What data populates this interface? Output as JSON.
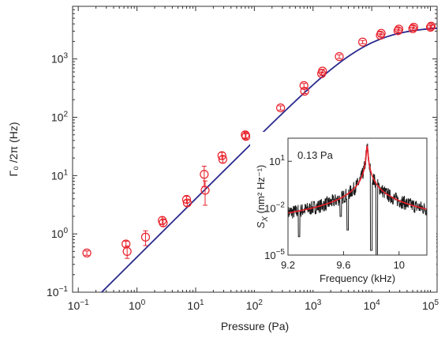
{
  "chart_data": [
    {
      "type": "scatter",
      "title": "",
      "xlabel": "Pressure (Pa)",
      "ylabel": "Γ₀ /2π (Hz)",
      "xscale": "log",
      "yscale": "log",
      "xlim": [
        0.08,
        130000
      ],
      "ylim": [
        0.1,
        8000
      ],
      "grid": false,
      "x_ticks": [
        {
          "value": 0.1,
          "base": "10",
          "exp": "−1"
        },
        {
          "value": 1,
          "base": "10",
          "exp": "0"
        },
        {
          "value": 10,
          "base": "10",
          "exp": "1"
        },
        {
          "value": 100,
          "base": "10",
          "exp": "2"
        },
        {
          "value": 1000,
          "base": "10",
          "exp": "3"
        },
        {
          "value": 10000,
          "base": "10",
          "exp": "4"
        },
        {
          "value": 100000,
          "base": "10",
          "exp": "5"
        }
      ],
      "y_ticks": [
        {
          "value": 0.1,
          "base": "10",
          "exp": "−1"
        },
        {
          "value": 1,
          "base": "10",
          "exp": "0"
        },
        {
          "value": 10,
          "base": "10",
          "exp": "1"
        },
        {
          "value": 100,
          "base": "10",
          "exp": "2"
        },
        {
          "value": 1000,
          "base": "10",
          "exp": "3"
        }
      ],
      "series": [
        {
          "kind": "points",
          "color": "#e8202a",
          "marker": "open-circle",
          "points": [
            {
              "x": 0.14,
              "y": 0.47,
              "err": 0.04
            },
            {
              "x": 0.65,
              "y": 0.67,
              "err": 0.08
            },
            {
              "x": 0.68,
              "y": 0.5,
              "err": 0.12
            },
            {
              "x": 1.4,
              "y": 0.88,
              "err": 0.25
            },
            {
              "x": 2.7,
              "y": 1.7,
              "err": 0.25
            },
            {
              "x": 2.8,
              "y": 1.55,
              "err": 0.2
            },
            {
              "x": 7.0,
              "y": 3.9,
              "err": 0.5
            },
            {
              "x": 7.2,
              "y": 3.4,
              "err": 0.4
            },
            {
              "x": 14,
              "y": 10.5,
              "err": 4.0
            },
            {
              "x": 14.5,
              "y": 5.6,
              "err": 2.5
            },
            {
              "x": 28,
              "y": 22,
              "err": 3.0
            },
            {
              "x": 29,
              "y": 19,
              "err": 2.5
            },
            {
              "x": 70,
              "y": 50,
              "err": 6.0
            },
            {
              "x": 72,
              "y": 47,
              "err": 5.0
            },
            {
              "x": 280,
              "y": 145,
              "err": 12
            },
            {
              "x": 700,
              "y": 350,
              "err": 30
            },
            {
              "x": 720,
              "y": 280,
              "err": 25
            },
            {
              "x": 1400,
              "y": 560,
              "err": 40
            },
            {
              "x": 1450,
              "y": 620,
              "err": 45
            },
            {
              "x": 2800,
              "y": 1100,
              "err": 80
            },
            {
              "x": 7000,
              "y": 1950,
              "err": 120
            },
            {
              "x": 14000,
              "y": 2550,
              "err": 150
            },
            {
              "x": 14500,
              "y": 2750,
              "err": 160
            },
            {
              "x": 28000,
              "y": 3050,
              "err": 180
            },
            {
              "x": 29000,
              "y": 3250,
              "err": 190
            },
            {
              "x": 50000,
              "y": 3300,
              "err": 200
            },
            {
              "x": 52000,
              "y": 3500,
              "err": 200
            },
            {
              "x": 100000,
              "y": 3500,
              "err": 200
            },
            {
              "x": 103000,
              "y": 3650,
              "err": 200
            }
          ]
        },
        {
          "kind": "line",
          "color": "#2a2a8f",
          "model": "y = a·x / (1 + x/x0)",
          "a": 0.4,
          "x0": 9000,
          "x_from": 0.2,
          "x_to": 130000
        }
      ]
    },
    {
      "type": "line",
      "inset": true,
      "title": "",
      "annotation": "0.13 Pa",
      "xlabel": "Frequency (kHz)",
      "ylabel_main": "S",
      "ylabel_sub": "X",
      "ylabel_units": " (nm² Hz⁻¹)",
      "xlim": [
        9.2,
        10.2
      ],
      "ylim": [
        1e-05,
        300
      ],
      "xscale": "linear",
      "yscale": "log",
      "x_ticks": [
        "9.2",
        "9.6",
        "10"
      ],
      "x_tick_values": [
        9.2,
        9.6,
        10.0
      ],
      "y_ticks": [
        {
          "value": 1e-05,
          "base": "10",
          "exp": "−5"
        },
        {
          "value": 0.01,
          "base": "10",
          "exp": "−2"
        },
        {
          "value": 10,
          "base": "10",
          "exp": "1"
        }
      ],
      "series": [
        {
          "name": "",
          "kind": "data",
          "color": "#1a1a1a",
          "peak_freq": 9.77,
          "peak_value": 100,
          "baseline": 3e-05,
          "features": [
            {
              "freq": 9.28,
              "value": 0.00015
            },
            {
              "freq": 9.58,
              "value": 0.003
            },
            {
              "freq": 9.63,
              "value": 0.0004
            },
            {
              "freq": 9.8,
              "value": 2e-05
            },
            {
              "freq": 9.84,
              "value": 1.2e-06
            }
          ]
        },
        {
          "name": "",
          "kind": "fit",
          "color": "#e8202a",
          "model": "lorentzian",
          "center": 9.77,
          "peak_value": 100,
          "baseline": 2.5e-05
        }
      ]
    }
  ]
}
